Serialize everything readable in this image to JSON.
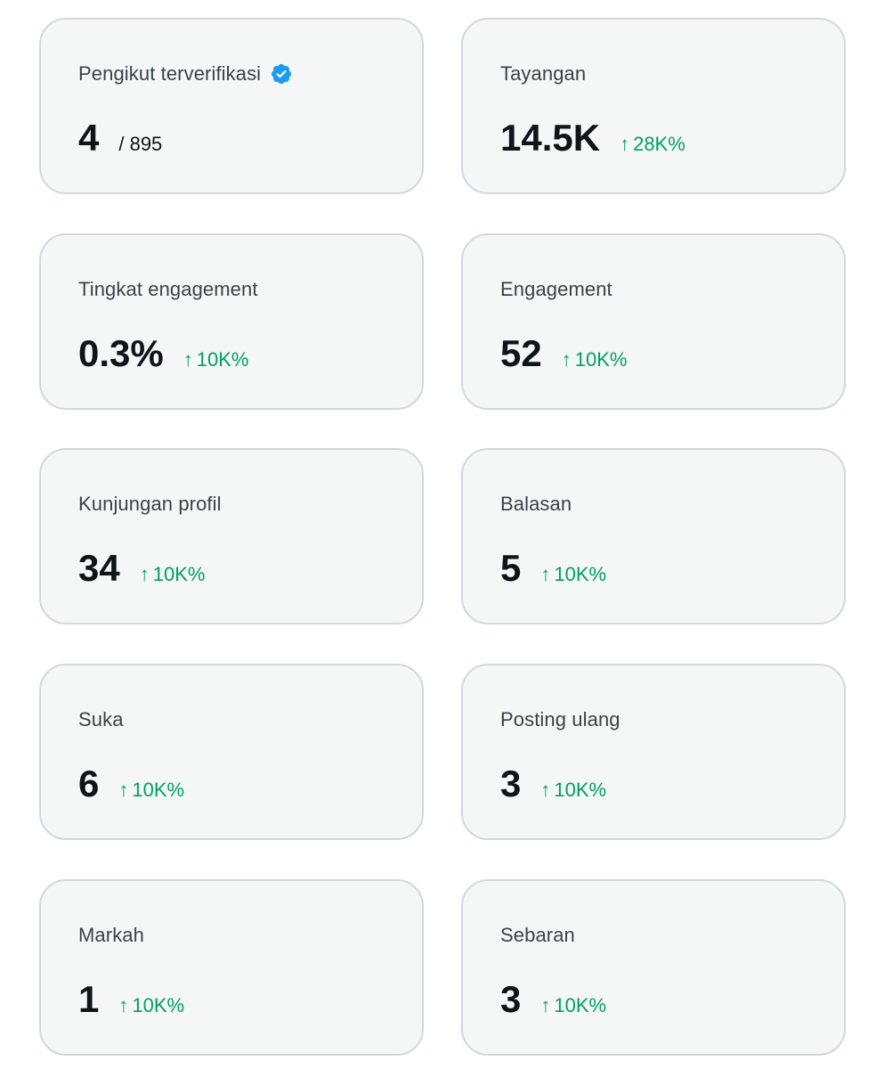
{
  "cards": [
    {
      "label": "Pengikut terverifikasi",
      "value": "4",
      "total": "/ 895",
      "verified_icon": "verified-badge-icon",
      "badge_color": "#1d9bf0"
    },
    {
      "label": "Tayangan",
      "value": "14.5K",
      "delta_arrow": "↑",
      "delta": "28K%"
    },
    {
      "label": "Tingkat engagement",
      "value": "0.3%",
      "delta_arrow": "↑",
      "delta": "10K%"
    },
    {
      "label": "Engagement",
      "value": "52",
      "delta_arrow": "↑",
      "delta": "10K%"
    },
    {
      "label": "Kunjungan profil",
      "value": "34",
      "delta_arrow": "↑",
      "delta": "10K%"
    },
    {
      "label": "Balasan",
      "value": "5",
      "delta_arrow": "↑",
      "delta": "10K%"
    },
    {
      "label": "Suka",
      "value": "6",
      "delta_arrow": "↑",
      "delta": "10K%"
    },
    {
      "label": "Posting ulang",
      "value": "3",
      "delta_arrow": "↑",
      "delta": "10K%"
    },
    {
      "label": "Markah",
      "value": "1",
      "delta_arrow": "↑",
      "delta": "10K%"
    },
    {
      "label": "Sebaran",
      "value": "3",
      "delta_arrow": "↑",
      "delta": "10K%"
    }
  ],
  "colors": {
    "card_bg": "#f5f7f7",
    "card_border": "#cfd9de",
    "positive_delta": "#00a060",
    "value_text": "#0f1419",
    "label_text": "#3a4249"
  }
}
